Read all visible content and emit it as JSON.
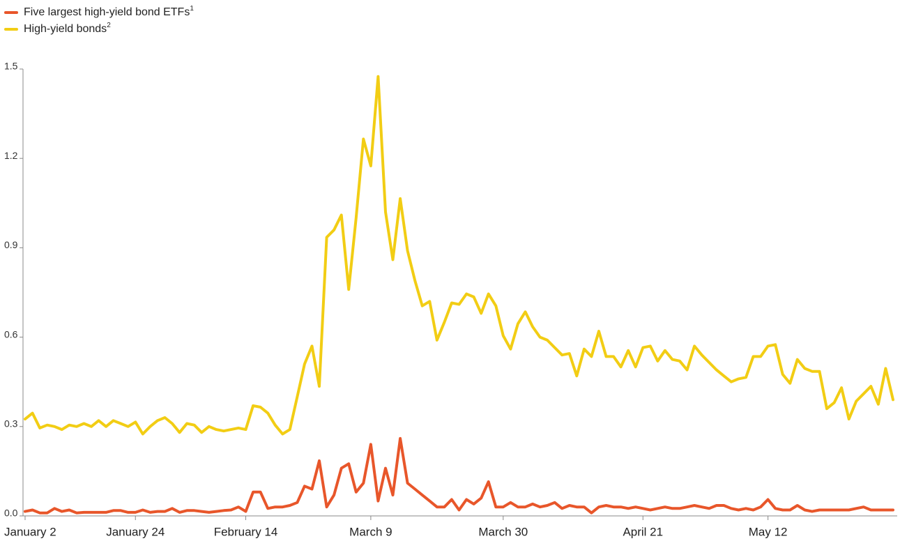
{
  "chart_data": {
    "type": "line",
    "categories": [
      "January 2",
      null,
      null,
      null,
      null,
      null,
      null,
      null,
      null,
      null,
      null,
      null,
      null,
      null,
      null,
      "January 24",
      null,
      null,
      null,
      null,
      null,
      null,
      null,
      null,
      null,
      null,
      null,
      null,
      null,
      null,
      "February 14",
      null,
      null,
      null,
      null,
      null,
      null,
      null,
      null,
      null,
      null,
      null,
      null,
      null,
      null,
      null,
      null,
      "March 9",
      null,
      null,
      null,
      null,
      null,
      null,
      null,
      null,
      null,
      null,
      null,
      null,
      null,
      null,
      null,
      null,
      null,
      "March 30",
      null,
      null,
      null,
      null,
      null,
      null,
      null,
      null,
      null,
      null,
      null,
      null,
      null,
      null,
      null,
      null,
      null,
      null,
      "April 21",
      null,
      null,
      null,
      null,
      null,
      null,
      null,
      null,
      null,
      null,
      null,
      null,
      null,
      null,
      null,
      null,
      "May 12",
      null,
      null,
      null,
      null,
      null,
      null,
      null,
      null,
      null,
      null,
      null,
      null,
      null,
      null,
      null,
      null,
      null
    ],
    "series": [
      {
        "name": "Five largest high-yield bond ETFs",
        "note": "1",
        "color": "#e8562a",
        "values": [
          0.015,
          0.02,
          0.01,
          0.01,
          0.025,
          0.015,
          0.02,
          0.01,
          0.012,
          0.012,
          0.012,
          0.012,
          0.018,
          0.018,
          0.012,
          0.012,
          0.02,
          0.012,
          0.015,
          0.015,
          0.025,
          0.012,
          0.018,
          0.018,
          0.015,
          0.012,
          0.015,
          0.018,
          0.02,
          0.03,
          0.015,
          0.08,
          0.08,
          0.025,
          0.03,
          0.03,
          0.035,
          0.045,
          0.1,
          0.09,
          0.185,
          0.03,
          0.07,
          0.16,
          0.175,
          0.08,
          0.11,
          0.24,
          0.05,
          0.16,
          0.07,
          0.26,
          0.11,
          0.09,
          0.07,
          0.05,
          0.03,
          0.03,
          0.055,
          0.02,
          0.055,
          0.04,
          0.06,
          0.115,
          0.03,
          0.03,
          0.045,
          0.03,
          0.03,
          0.04,
          0.03,
          0.035,
          0.045,
          0.025,
          0.035,
          0.03,
          0.03,
          0.01,
          0.03,
          0.035,
          0.03,
          0.03,
          0.025,
          0.03,
          0.025,
          0.02,
          0.025,
          0.03,
          0.025,
          0.025,
          0.03,
          0.035,
          0.03,
          0.025,
          0.035,
          0.035,
          0.025,
          0.02,
          0.025,
          0.02,
          0.03,
          0.055,
          0.025,
          0.02,
          0.02,
          0.035,
          0.02,
          0.015,
          0.02,
          0.02,
          0.02,
          0.02,
          0.02,
          0.025,
          0.03,
          0.02,
          0.02,
          0.02,
          0.02
        ]
      },
      {
        "name": "High-yield bonds",
        "note": "2",
        "color": "#f2cd14",
        "values": [
          0.325,
          0.345,
          0.295,
          0.305,
          0.3,
          0.29,
          0.305,
          0.3,
          0.31,
          0.3,
          0.32,
          0.3,
          0.32,
          0.31,
          0.3,
          0.315,
          0.275,
          0.3,
          0.32,
          0.33,
          0.31,
          0.28,
          0.31,
          0.305,
          0.28,
          0.3,
          0.29,
          0.285,
          0.29,
          0.295,
          0.29,
          0.37,
          0.365,
          0.345,
          0.305,
          0.275,
          0.29,
          0.4,
          0.51,
          0.57,
          0.435,
          0.935,
          0.96,
          1.01,
          0.76,
          1.0,
          1.265,
          1.175,
          1.475,
          1.02,
          0.86,
          1.065,
          0.89,
          0.79,
          0.705,
          0.72,
          0.59,
          0.65,
          0.715,
          0.71,
          0.745,
          0.735,
          0.68,
          0.745,
          0.705,
          0.605,
          0.56,
          0.645,
          0.685,
          0.635,
          0.6,
          0.59,
          0.565,
          0.54,
          0.545,
          0.47,
          0.56,
          0.535,
          0.62,
          0.535,
          0.535,
          0.5,
          0.555,
          0.5,
          0.565,
          0.57,
          0.52,
          0.555,
          0.525,
          0.52,
          0.49,
          0.57,
          0.54,
          0.515,
          0.49,
          0.47,
          0.45,
          0.46,
          0.465,
          0.535,
          0.535,
          0.57,
          0.575,
          0.475,
          0.445,
          0.525,
          0.495,
          0.485,
          0.485,
          0.36,
          0.38,
          0.43,
          0.325,
          0.385,
          0.41,
          0.435,
          0.375,
          0.495,
          0.39
        ]
      }
    ],
    "ylim": [
      0,
      1.5
    ],
    "yticks": [
      {
        "value": 0,
        "label": "0.0"
      },
      0.3,
      0.6,
      0.9,
      1.2,
      1.5
    ],
    "grid": false,
    "legend": "top-left"
  }
}
